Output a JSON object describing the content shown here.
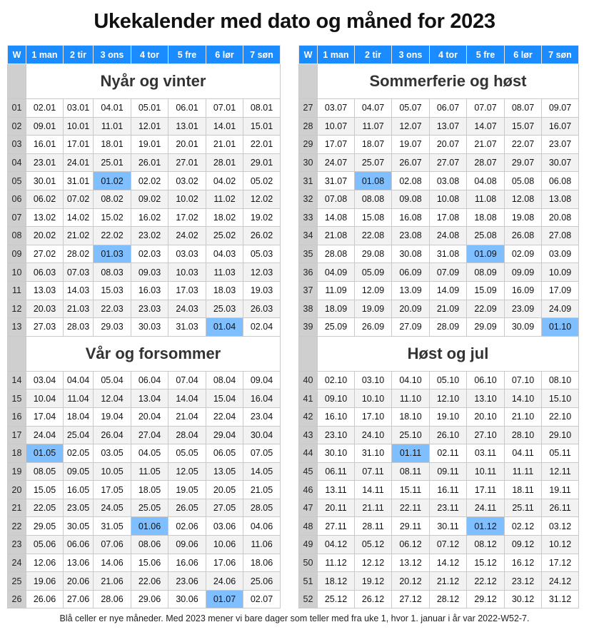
{
  "title": "Ukekalender med dato og måned for 2023",
  "header": {
    "week": "W",
    "days": [
      "1 man",
      "2 tir",
      "3 ons",
      "4 tor",
      "5 fre",
      "6 lør",
      "7 søn"
    ]
  },
  "highlight_color": "#7fbfff",
  "header_color": "#1a8cff",
  "blocks": [
    {
      "left": {
        "title": "Nyår og vinter",
        "rows": [
          {
            "week": "01",
            "days": [
              "02.01",
              "03.01",
              "04.01",
              "05.01",
              "06.01",
              "07.01",
              "08.01"
            ],
            "hl": null
          },
          {
            "week": "02",
            "days": [
              "09.01",
              "10.01",
              "11.01",
              "12.01",
              "13.01",
              "14.01",
              "15.01"
            ],
            "hl": null
          },
          {
            "week": "03",
            "days": [
              "16.01",
              "17.01",
              "18.01",
              "19.01",
              "20.01",
              "21.01",
              "22.01"
            ],
            "hl": null
          },
          {
            "week": "04",
            "days": [
              "23.01",
              "24.01",
              "25.01",
              "26.01",
              "27.01",
              "28.01",
              "29.01"
            ],
            "hl": null
          },
          {
            "week": "05",
            "days": [
              "30.01",
              "31.01",
              "01.02",
              "02.02",
              "03.02",
              "04.02",
              "05.02"
            ],
            "hl": 2
          },
          {
            "week": "06",
            "days": [
              "06.02",
              "07.02",
              "08.02",
              "09.02",
              "10.02",
              "11.02",
              "12.02"
            ],
            "hl": null
          },
          {
            "week": "07",
            "days": [
              "13.02",
              "14.02",
              "15.02",
              "16.02",
              "17.02",
              "18.02",
              "19.02"
            ],
            "hl": null
          },
          {
            "week": "08",
            "days": [
              "20.02",
              "21.02",
              "22.02",
              "23.02",
              "24.02",
              "25.02",
              "26.02"
            ],
            "hl": null
          },
          {
            "week": "09",
            "days": [
              "27.02",
              "28.02",
              "01.03",
              "02.03",
              "03.03",
              "04.03",
              "05.03"
            ],
            "hl": 2
          },
          {
            "week": "10",
            "days": [
              "06.03",
              "07.03",
              "08.03",
              "09.03",
              "10.03",
              "11.03",
              "12.03"
            ],
            "hl": null
          },
          {
            "week": "11",
            "days": [
              "13.03",
              "14.03",
              "15.03",
              "16.03",
              "17.03",
              "18.03",
              "19.03"
            ],
            "hl": null
          },
          {
            "week": "12",
            "days": [
              "20.03",
              "21.03",
              "22.03",
              "23.03",
              "24.03",
              "25.03",
              "26.03"
            ],
            "hl": null
          },
          {
            "week": "13",
            "days": [
              "27.03",
              "28.03",
              "29.03",
              "30.03",
              "31.03",
              "01.04",
              "02.04"
            ],
            "hl": 5
          }
        ]
      },
      "right": {
        "title": "Sommerferie og høst",
        "rows": [
          {
            "week": "27",
            "days": [
              "03.07",
              "04.07",
              "05.07",
              "06.07",
              "07.07",
              "08.07",
              "09.07"
            ],
            "hl": null
          },
          {
            "week": "28",
            "days": [
              "10.07",
              "11.07",
              "12.07",
              "13.07",
              "14.07",
              "15.07",
              "16.07"
            ],
            "hl": null
          },
          {
            "week": "29",
            "days": [
              "17.07",
              "18.07",
              "19.07",
              "20.07",
              "21.07",
              "22.07",
              "23.07"
            ],
            "hl": null
          },
          {
            "week": "30",
            "days": [
              "24.07",
              "25.07",
              "26.07",
              "27.07",
              "28.07",
              "29.07",
              "30.07"
            ],
            "hl": null
          },
          {
            "week": "31",
            "days": [
              "31.07",
              "01.08",
              "02.08",
              "03.08",
              "04.08",
              "05.08",
              "06.08"
            ],
            "hl": 1
          },
          {
            "week": "32",
            "days": [
              "07.08",
              "08.08",
              "09.08",
              "10.08",
              "11.08",
              "12.08",
              "13.08"
            ],
            "hl": null
          },
          {
            "week": "33",
            "days": [
              "14.08",
              "15.08",
              "16.08",
              "17.08",
              "18.08",
              "19.08",
              "20.08"
            ],
            "hl": null
          },
          {
            "week": "34",
            "days": [
              "21.08",
              "22.08",
              "23.08",
              "24.08",
              "25.08",
              "26.08",
              "27.08"
            ],
            "hl": null
          },
          {
            "week": "35",
            "days": [
              "28.08",
              "29.08",
              "30.08",
              "31.08",
              "01.09",
              "02.09",
              "03.09"
            ],
            "hl": 4
          },
          {
            "week": "36",
            "days": [
              "04.09",
              "05.09",
              "06.09",
              "07.09",
              "08.09",
              "09.09",
              "10.09"
            ],
            "hl": null
          },
          {
            "week": "37",
            "days": [
              "11.09",
              "12.09",
              "13.09",
              "14.09",
              "15.09",
              "16.09",
              "17.09"
            ],
            "hl": null
          },
          {
            "week": "38",
            "days": [
              "18.09",
              "19.09",
              "20.09",
              "21.09",
              "22.09",
              "23.09",
              "24.09"
            ],
            "hl": null
          },
          {
            "week": "39",
            "days": [
              "25.09",
              "26.09",
              "27.09",
              "28.09",
              "29.09",
              "30.09",
              "01.10"
            ],
            "hl": 6
          }
        ]
      }
    },
    {
      "left": {
        "title": "Vår og forsommer",
        "rows": [
          {
            "week": "14",
            "days": [
              "03.04",
              "04.04",
              "05.04",
              "06.04",
              "07.04",
              "08.04",
              "09.04"
            ],
            "hl": null
          },
          {
            "week": "15",
            "days": [
              "10.04",
              "11.04",
              "12.04",
              "13.04",
              "14.04",
              "15.04",
              "16.04"
            ],
            "hl": null
          },
          {
            "week": "16",
            "days": [
              "17.04",
              "18.04",
              "19.04",
              "20.04",
              "21.04",
              "22.04",
              "23.04"
            ],
            "hl": null
          },
          {
            "week": "17",
            "days": [
              "24.04",
              "25.04",
              "26.04",
              "27.04",
              "28.04",
              "29.04",
              "30.04"
            ],
            "hl": null
          },
          {
            "week": "18",
            "days": [
              "01.05",
              "02.05",
              "03.05",
              "04.05",
              "05.05",
              "06.05",
              "07.05"
            ],
            "hl": 0
          },
          {
            "week": "19",
            "days": [
              "08.05",
              "09.05",
              "10.05",
              "11.05",
              "12.05",
              "13.05",
              "14.05"
            ],
            "hl": null
          },
          {
            "week": "20",
            "days": [
              "15.05",
              "16.05",
              "17.05",
              "18.05",
              "19.05",
              "20.05",
              "21.05"
            ],
            "hl": null
          },
          {
            "week": "21",
            "days": [
              "22.05",
              "23.05",
              "24.05",
              "25.05",
              "26.05",
              "27.05",
              "28.05"
            ],
            "hl": null
          },
          {
            "week": "22",
            "days": [
              "29.05",
              "30.05",
              "31.05",
              "01.06",
              "02.06",
              "03.06",
              "04.06"
            ],
            "hl": 3
          },
          {
            "week": "23",
            "days": [
              "05.06",
              "06.06",
              "07.06",
              "08.06",
              "09.06",
              "10.06",
              "11.06"
            ],
            "hl": null
          },
          {
            "week": "24",
            "days": [
              "12.06",
              "13.06",
              "14.06",
              "15.06",
              "16.06",
              "17.06",
              "18.06"
            ],
            "hl": null
          },
          {
            "week": "25",
            "days": [
              "19.06",
              "20.06",
              "21.06",
              "22.06",
              "23.06",
              "24.06",
              "25.06"
            ],
            "hl": null
          },
          {
            "week": "26",
            "days": [
              "26.06",
              "27.06",
              "28.06",
              "29.06",
              "30.06",
              "01.07",
              "02.07"
            ],
            "hl": 5
          }
        ]
      },
      "right": {
        "title": "Høst og jul",
        "rows": [
          {
            "week": "40",
            "days": [
              "02.10",
              "03.10",
              "04.10",
              "05.10",
              "06.10",
              "07.10",
              "08.10"
            ],
            "hl": null
          },
          {
            "week": "41",
            "days": [
              "09.10",
              "10.10",
              "11.10",
              "12.10",
              "13.10",
              "14.10",
              "15.10"
            ],
            "hl": null
          },
          {
            "week": "42",
            "days": [
              "16.10",
              "17.10",
              "18.10",
              "19.10",
              "20.10",
              "21.10",
              "22.10"
            ],
            "hl": null
          },
          {
            "week": "43",
            "days": [
              "23.10",
              "24.10",
              "25.10",
              "26.10",
              "27.10",
              "28.10",
              "29.10"
            ],
            "hl": null
          },
          {
            "week": "44",
            "days": [
              "30.10",
              "31.10",
              "01.11",
              "02.11",
              "03.11",
              "04.11",
              "05.11"
            ],
            "hl": 2
          },
          {
            "week": "45",
            "days": [
              "06.11",
              "07.11",
              "08.11",
              "09.11",
              "10.11",
              "11.11",
              "12.11"
            ],
            "hl": null
          },
          {
            "week": "46",
            "days": [
              "13.11",
              "14.11",
              "15.11",
              "16.11",
              "17.11",
              "18.11",
              "19.11"
            ],
            "hl": null
          },
          {
            "week": "47",
            "days": [
              "20.11",
              "21.11",
              "22.11",
              "23.11",
              "24.11",
              "25.11",
              "26.11"
            ],
            "hl": null
          },
          {
            "week": "48",
            "days": [
              "27.11",
              "28.11",
              "29.11",
              "30.11",
              "01.12",
              "02.12",
              "03.12"
            ],
            "hl": 4
          },
          {
            "week": "49",
            "days": [
              "04.12",
              "05.12",
              "06.12",
              "07.12",
              "08.12",
              "09.12",
              "10.12"
            ],
            "hl": null
          },
          {
            "week": "50",
            "days": [
              "11.12",
              "12.12",
              "13.12",
              "14.12",
              "15.12",
              "16.12",
              "17.12"
            ],
            "hl": null
          },
          {
            "week": "51",
            "days": [
              "18.12",
              "19.12",
              "20.12",
              "21.12",
              "22.12",
              "23.12",
              "24.12"
            ],
            "hl": null
          },
          {
            "week": "52",
            "days": [
              "25.12",
              "26.12",
              "27.12",
              "28.12",
              "29.12",
              "30.12",
              "31.12"
            ],
            "hl": null
          }
        ]
      }
    }
  ],
  "footnote": "Blå celler er nye måneder. Med 2023 mener vi bare dager som teller med fra uke 1, hvor 1. januar i år var 2022-W52-7."
}
